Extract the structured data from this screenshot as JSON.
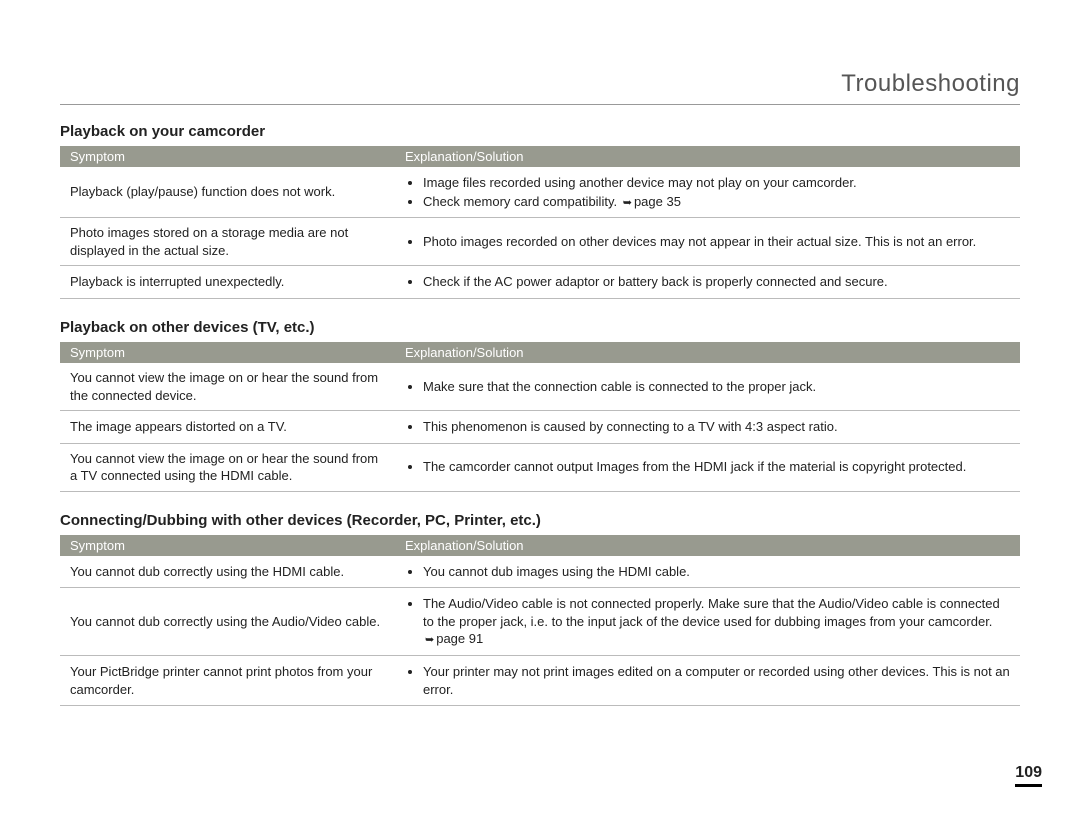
{
  "pageTitle": "Troubleshooting",
  "pageNumber": "109",
  "colors": {
    "headerBg": "#989a8f",
    "headerFg": "#ffffff",
    "rule": "#bbbbbb",
    "text": "#222222"
  },
  "columnHeaders": {
    "symptom": "Symptom",
    "solution": "Explanation/Solution"
  },
  "sections": [
    {
      "heading": "Playback on your camcorder",
      "rows": [
        {
          "symptom": "Playback (play/pause) function does not work.",
          "solution": [
            "Image files recorded using another device may not play on your camcorder.",
            {
              "text": "Check memory card compatibility. ",
              "pageRef": "page 35"
            }
          ]
        },
        {
          "symptom": "Photo images stored on a storage media are not displayed in the actual size.",
          "solution": [
            "Photo images recorded on other devices may not appear in their actual size. This is not an error."
          ]
        },
        {
          "symptom": "Playback is interrupted unexpectedly.",
          "solution": [
            "Check if the AC power adaptor or battery back is properly connected and secure."
          ]
        }
      ]
    },
    {
      "heading": "Playback on other devices (TV, etc.)",
      "rows": [
        {
          "symptom": "You cannot view the image on or hear the sound from the connected device.",
          "solution": [
            "Make sure that the connection cable is connected to the proper jack."
          ]
        },
        {
          "symptom": "The image appears distorted on a TV.",
          "solution": [
            "This phenomenon is caused by connecting to a TV with 4:3 aspect ratio."
          ]
        },
        {
          "symptom": "You cannot view the image on or hear the sound from a TV connected using the HDMI cable.",
          "solution": [
            "The camcorder cannot output Images from the HDMI jack if the material is copyright protected."
          ]
        }
      ]
    },
    {
      "heading": "Connecting/Dubbing with other devices (Recorder, PC, Printer, etc.)",
      "rows": [
        {
          "symptom": "You cannot dub correctly using the HDMI cable.",
          "solution": [
            "You cannot dub images using the HDMI cable."
          ]
        },
        {
          "symptom": "You cannot dub correctly using the Audio/Video cable.",
          "solution": [
            {
              "text": "The Audio/Video cable is not connected properly. Make sure that the Audio/Video cable is connected to the proper jack, i.e. to the input jack of the device used for dubbing images from your camcorder. ",
              "pageRef": "page 91"
            }
          ]
        },
        {
          "symptom": "Your PictBridge printer cannot print photos from your camcorder.",
          "solution": [
            "Your printer may not print images edited on a computer or recorded using other devices. This is not an error."
          ]
        }
      ]
    }
  ]
}
